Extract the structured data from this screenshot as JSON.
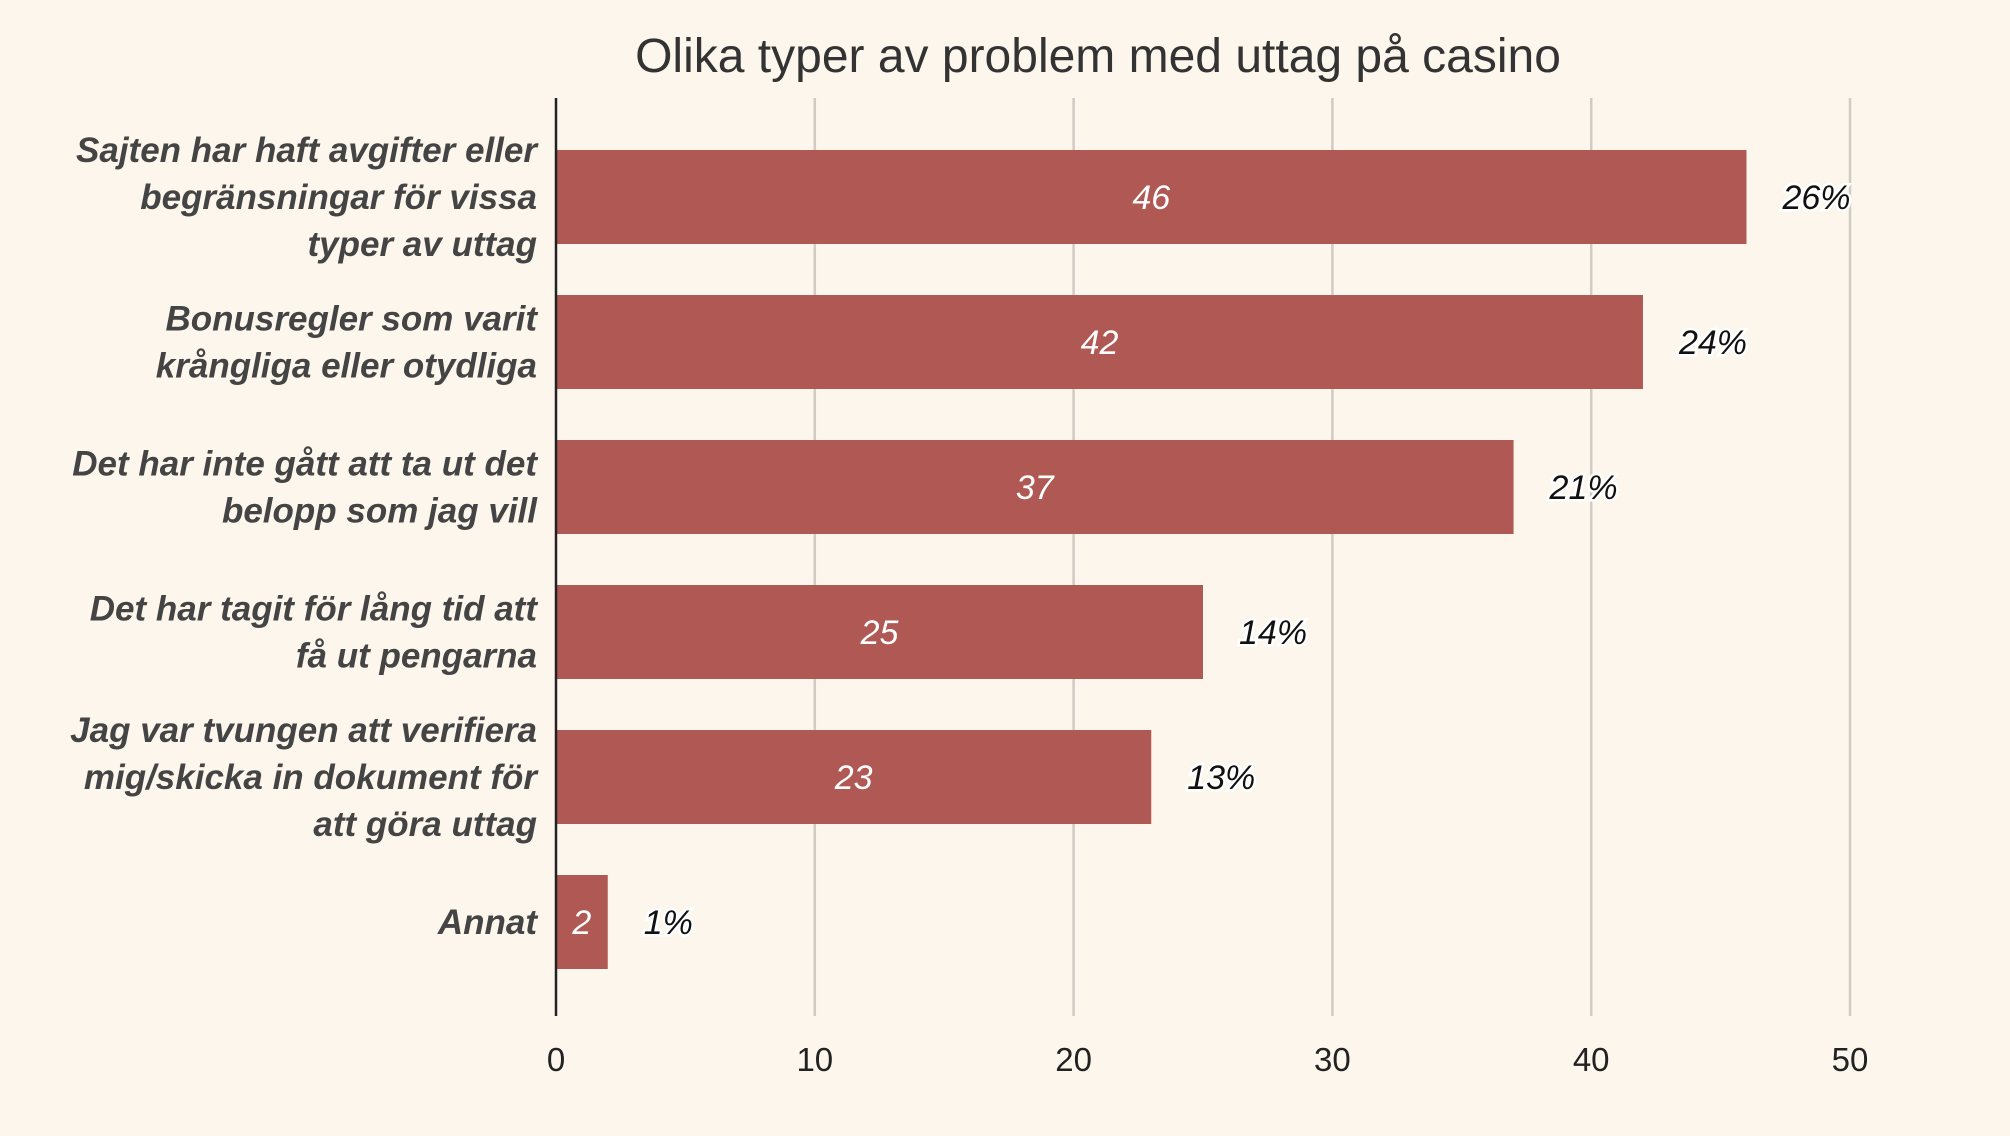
{
  "chart_data": {
    "type": "bar",
    "orientation": "horizontal",
    "title": "Olika typer av problem med uttag på casino",
    "xlabel": "",
    "ylabel": "",
    "xlim": [
      0,
      50
    ],
    "ticks": [
      "0",
      "10",
      "20",
      "30",
      "40",
      "50"
    ],
    "grid": true,
    "categories": [
      [
        "Sajten har haft avgifter eller",
        "begränsningar för vissa",
        "typer av uttag"
      ],
      [
        "Bonusregler som varit",
        "krångliga eller otydliga"
      ],
      [
        "Det har inte gått att ta ut det",
        "belopp som jag vill"
      ],
      [
        "Det har tagit för lång tid att",
        "få ut pengarna"
      ],
      [
        "Jag var tvungen att verifiera",
        "mig/skicka in dokument för",
        "att göra uttag"
      ],
      [
        "Annat"
      ]
    ],
    "values": [
      46,
      42,
      37,
      25,
      23,
      2
    ],
    "value_labels": [
      "46",
      "42",
      "37",
      "25",
      "23",
      "2"
    ],
    "percent_labels": [
      "26%",
      "24%",
      "21%",
      "14%",
      "13%",
      "1%"
    ],
    "bar_color": "#b05853",
    "background_color": "#fdf6ec"
  }
}
